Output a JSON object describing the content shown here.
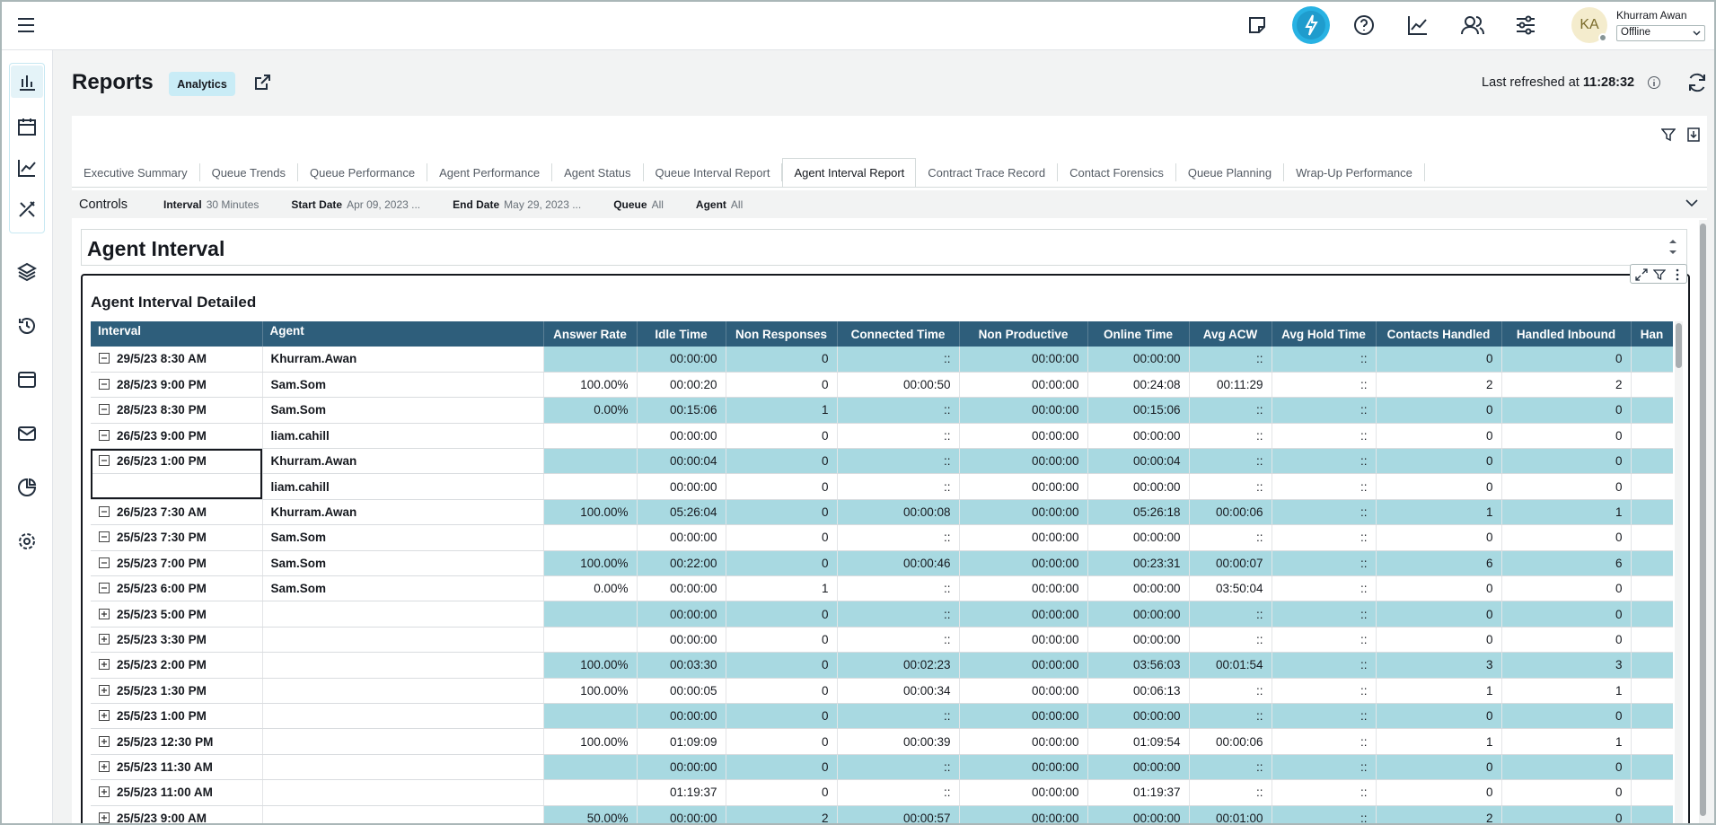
{
  "header": {
    "user_initials": "KA",
    "user_name": "Khurram Awan",
    "status": "Offline"
  },
  "page": {
    "title": "Reports",
    "badge": "Analytics",
    "last_refreshed_label": "Last refreshed at",
    "last_refreshed_time": "11:28:32"
  },
  "tabs": {
    "items": [
      "Executive Summary",
      "Queue Trends",
      "Queue Performance",
      "Agent Performance",
      "Agent Status",
      "Queue Interval Report",
      "Agent Interval Report",
      "Contract Trace Record",
      "Contact Forensics",
      "Queue Planning",
      "Wrap-Up Performance"
    ],
    "active": 6
  },
  "controls": {
    "label": "Controls",
    "filters": [
      {
        "label": "Interval",
        "value": "30 Minutes"
      },
      {
        "label": "Start Date",
        "value": "Apr 09, 2023 ..."
      },
      {
        "label": "End Date",
        "value": "May 29, 2023 ..."
      },
      {
        "label": "Queue",
        "value": "All"
      },
      {
        "label": "Agent",
        "value": "All"
      }
    ]
  },
  "panel": {
    "title": "Agent Interval"
  },
  "table": {
    "title": "Agent Interval Detailed",
    "columns": [
      "Interval",
      "Agent",
      "Answer Rate",
      "Idle Time",
      "Non Responses",
      "Connected Time",
      "Non Productive",
      "Online Time",
      "Avg ACW",
      "Avg Hold Time",
      "Contacts Handled",
      "Handled Inbound",
      "Han"
    ],
    "rows": [
      [
        "29/5/23 8:30 AM",
        "Khurram.Awan",
        null,
        "00:00:00",
        0,
        "::",
        "00:00:00",
        "00:00:00",
        "::",
        "::",
        0,
        0
      ],
      [
        "28/5/23 9:00 PM",
        "Sam.Som",
        "100.00%",
        "00:00:20",
        0,
        "00:00:50",
        "00:00:00",
        "00:24:08",
        "00:11:29",
        "::",
        2,
        2
      ],
      [
        "28/5/23 8:30 PM",
        "Sam.Som",
        "0.00%",
        "00:15:06",
        1,
        "::",
        "00:00:00",
        "00:15:06",
        "::",
        "::",
        0,
        0
      ],
      [
        "26/5/23 9:00 PM",
        "liam.cahill",
        null,
        "00:00:00",
        0,
        "::",
        "00:00:00",
        "00:00:00",
        "::",
        "::",
        0,
        0
      ],
      [
        "26/5/23 1:00 PM",
        "Khurram.Awan",
        null,
        "00:00:04",
        0,
        "::",
        "00:00:00",
        "00:00:04",
        "::",
        "::",
        0,
        0
      ],
      [
        null,
        "liam.cahill",
        null,
        "00:00:00",
        0,
        "::",
        "00:00:00",
        "00:00:00",
        "::",
        "::",
        0,
        0
      ],
      [
        "26/5/23 7:30 AM",
        "Khurram.Awan",
        "100.00%",
        "05:26:04",
        0,
        "00:00:08",
        "00:00:00",
        "05:26:18",
        "00:00:06",
        "::",
        1,
        1
      ],
      [
        "25/5/23 7:30 PM",
        "Sam.Som",
        null,
        "00:00:00",
        0,
        "::",
        "00:00:00",
        "00:00:00",
        "::",
        "::",
        0,
        0
      ],
      [
        "25/5/23 7:00 PM",
        "Sam.Som",
        "100.00%",
        "00:22:00",
        0,
        "00:00:46",
        "00:00:00",
        "00:23:31",
        "00:00:07",
        "::",
        6,
        6
      ],
      [
        "25/5/23 6:00 PM",
        "Sam.Som",
        "0.00%",
        "00:00:00",
        1,
        "::",
        "00:00:00",
        "00:00:00",
        "03:50:04",
        "::",
        0,
        0
      ],
      [
        "25/5/23 5:00 PM",
        null,
        null,
        "00:00:00",
        0,
        "::",
        "00:00:00",
        "00:00:00",
        "::",
        "::",
        0,
        0
      ],
      [
        "25/5/23 3:30 PM",
        null,
        null,
        "00:00:00",
        0,
        "::",
        "00:00:00",
        "00:00:00",
        "::",
        "::",
        0,
        0
      ],
      [
        "25/5/23 2:00 PM",
        null,
        "100.00%",
        "00:03:30",
        0,
        "00:02:23",
        "00:00:00",
        "03:56:03",
        "00:01:54",
        "::",
        3,
        3
      ],
      [
        "25/5/23 1:30 PM",
        null,
        "100.00%",
        "00:00:05",
        0,
        "00:00:34",
        "00:00:00",
        "00:06:13",
        "::",
        "::",
        1,
        1
      ],
      [
        "25/5/23 1:00 PM",
        null,
        null,
        "00:00:00",
        0,
        "::",
        "00:00:00",
        "00:00:00",
        "::",
        "::",
        0,
        0
      ],
      [
        "25/5/23 12:30 PM",
        null,
        "100.00%",
        "01:09:09",
        0,
        "00:00:39",
        "00:00:00",
        "01:09:54",
        "00:00:06",
        "::",
        1,
        1
      ],
      [
        "25/5/23 11:30 AM",
        null,
        null,
        "00:00:00",
        0,
        "::",
        "00:00:00",
        "00:00:00",
        "::",
        "::",
        0,
        0
      ],
      [
        "25/5/23 11:00 AM",
        null,
        null,
        "01:19:37",
        0,
        "::",
        "00:00:00",
        "01:19:37",
        "::",
        "::",
        0,
        0
      ],
      [
        "25/5/23 9:00 AM",
        null,
        "50.00%",
        "00:00:00",
        2,
        "00:00:57",
        "00:00:00",
        "00:00:00",
        "00:01:00",
        "::",
        2,
        0
      ]
    ]
  }
}
